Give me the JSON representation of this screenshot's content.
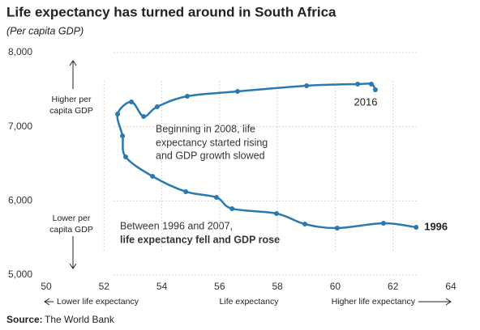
{
  "chart_data": {
    "type": "line",
    "title": "Life expectancy has turned around in South Africa",
    "subtitle": "(Per capita GDP)",
    "x": [
      62.8,
      61.67,
      60.07,
      58.95,
      57.97,
      56.43,
      55.89,
      54.83,
      53.68,
      52.75,
      52.64,
      52.47,
      52.95,
      53.37,
      53.84,
      54.88,
      56.62,
      59.01,
      60.78,
      61.25,
      61.39
    ],
    "values": [
      5644,
      5698,
      5633,
      5687,
      5829,
      5895,
      6047,
      6124,
      6331,
      6593,
      6876,
      7171,
      7335,
      7138,
      7269,
      7411,
      7476,
      7553,
      7575,
      7575,
      7498
    ],
    "color": "#2a7ab0",
    "start_label": "1996",
    "end_label": "2016",
    "xlim": [
      50,
      64
    ],
    "xticks": [
      50,
      52,
      54,
      56,
      58,
      60,
      62,
      64
    ],
    "ylim": [
      5000,
      8000
    ],
    "yticks": [
      {
        "value": 5000,
        "label": "5,000"
      },
      {
        "value": 6000,
        "label": "6,000"
      },
      {
        "value": 7000,
        "label": "7,000"
      },
      {
        "value": 8000,
        "label": "8,000"
      }
    ],
    "grid": true,
    "annotations": [
      [
        "Beginning in 2008, life",
        "expectancy started rising",
        "and GDP growth slowed"
      ],
      [
        "Between 1996 and 2007,",
        "life expectancy fell and GDP rose"
      ]
    ],
    "y_notes": [
      [
        "Higher per",
        "capita GDP"
      ],
      [
        "Lower per",
        "capita GDP"
      ]
    ],
    "x_notes": [
      "Lower life expectancy",
      "Life expectancy",
      "Higher life expectancy"
    ],
    "source": {
      "label": "Source:",
      "text": "The World Bank"
    }
  }
}
